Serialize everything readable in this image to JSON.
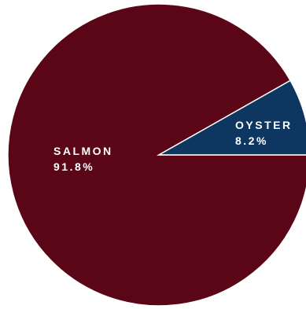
{
  "chart_data": {
    "type": "pie",
    "title": "",
    "legend": "none",
    "slices": [
      {
        "label": "SALMON",
        "value": 91.8,
        "value_label": "91.8%",
        "color": "#5b0616"
      },
      {
        "label": "OYSTER",
        "value": 8.2,
        "value_label": "8.2%",
        "color": "#0d3660"
      }
    ]
  }
}
